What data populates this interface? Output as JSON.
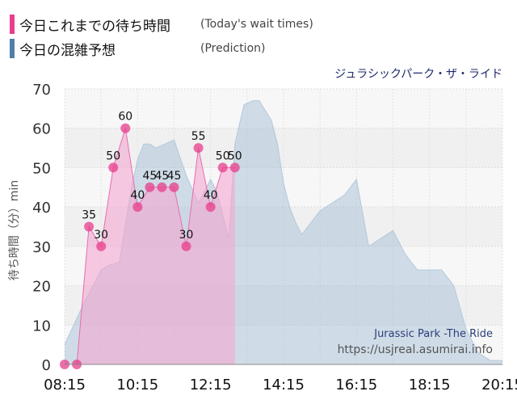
{
  "legend": [
    {
      "label": "今日これまでの待ち時間",
      "sub": "(Today's wait times)",
      "color": "#e83e8c"
    },
    {
      "label": "今日の混雑予想",
      "sub": "(Prediction)",
      "color": "#4f7faa"
    }
  ],
  "chart_data": {
    "type": "area",
    "title": "ジュラシックパーク・ザ・ライド",
    "ylabel": "待ち時間（分）min",
    "xlabel": "",
    "ylim": [
      0,
      70
    ],
    "yticks": [
      0,
      10,
      20,
      30,
      40,
      50,
      60,
      70
    ],
    "x_ticks": [
      "08:15",
      "10:15",
      "12:15",
      "14:15",
      "16:15",
      "18:15",
      "20:15"
    ],
    "grid": true,
    "watermark": [
      "Jurassic Park -The Ride",
      "https://usjreal.asumirai.info"
    ],
    "series": [
      {
        "name": "今日これまでの待ち時間",
        "type": "area",
        "color": "#e83e8c",
        "x": [
          "08:15",
          "08:35",
          "08:55",
          "09:15",
          "09:35",
          "09:55",
          "10:15",
          "10:35",
          "10:55",
          "11:15",
          "11:35",
          "11:55",
          "12:15",
          "12:35",
          "12:55",
          "13:15",
          "13:35",
          "13:55",
          "14:15"
        ],
        "values": [
          0,
          0,
          35,
          30,
          50,
          60,
          40,
          45,
          45,
          45,
          30,
          55,
          40,
          50,
          50,
          null,
          null,
          null,
          null
        ],
        "labels": [
          null,
          null,
          "35",
          "30",
          "50",
          "60",
          "40",
          "45",
          "45",
          "45",
          "30",
          "55",
          "40",
          "50",
          "50",
          null,
          null,
          null,
          null
        ]
      },
      {
        "name": "今日の混雑予想",
        "type": "area",
        "color": "#9dbad3",
        "x": [
          "08:15",
          "08:45",
          "09:15",
          "09:25",
          "09:45",
          "10:05",
          "10:15",
          "10:25",
          "10:35",
          "10:45",
          "11:00",
          "11:15",
          "11:35",
          "11:55",
          "12:15",
          "12:25",
          "12:45",
          "12:55",
          "13:10",
          "13:25",
          "13:35",
          "13:55",
          "14:05",
          "14:15",
          "14:25",
          "14:35",
          "14:45",
          "15:00",
          "15:15",
          "15:35",
          "15:55",
          "16:15",
          "16:35",
          "16:55",
          "17:15",
          "17:35",
          "17:55",
          "18:15",
          "18:35",
          "18:55",
          "19:15",
          "19:35",
          "19:55",
          "20:15"
        ],
        "values": [
          5,
          15,
          24,
          25,
          26,
          45,
          52,
          56,
          56,
          55,
          56,
          57,
          48,
          41,
          47,
          44,
          32,
          56,
          66,
          67,
          67,
          62,
          56,
          46,
          40,
          36,
          33,
          36,
          39,
          41,
          43,
          47,
          30,
          32,
          34,
          28,
          24,
          24,
          24,
          20,
          9,
          3,
          1,
          1
        ]
      }
    ]
  }
}
